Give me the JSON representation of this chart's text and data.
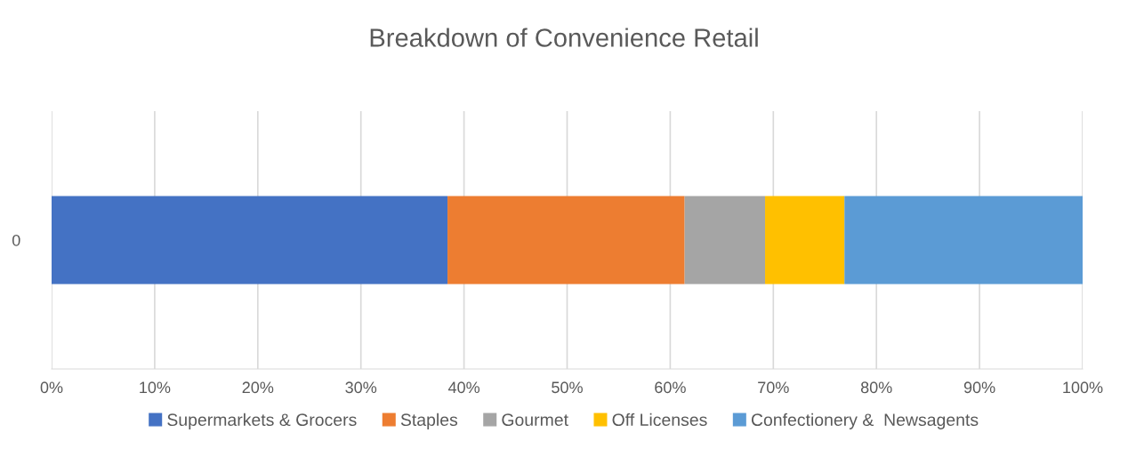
{
  "chart_data": {
    "type": "bar",
    "title": "Breakdown of Convenience Retail",
    "orientation": "horizontal",
    "stacked": true,
    "categories": [
      "0"
    ],
    "series": [
      {
        "name": "Supermarkets & Grocers",
        "color": "#4472c4",
        "values": [
          38.4
        ]
      },
      {
        "name": "Staples",
        "color": "#ed7d31",
        "values": [
          23.0
        ]
      },
      {
        "name": "Gourmet",
        "color": "#a5a5a5",
        "values": [
          7.8
        ]
      },
      {
        "name": "Off Licenses",
        "color": "#ffc000",
        "values": [
          7.7
        ]
      },
      {
        "name": "Confectionery &  Newsagents",
        "color": "#5b9bd5",
        "values": [
          23.1
        ]
      }
    ],
    "xlim": [
      0,
      100
    ],
    "xticks": [
      {
        "value": 0,
        "label": "0%"
      },
      {
        "value": 10,
        "label": "10%"
      },
      {
        "value": 20,
        "label": "20%"
      },
      {
        "value": 30,
        "label": "30%"
      },
      {
        "value": 40,
        "label": "40%"
      },
      {
        "value": 50,
        "label": "50%"
      },
      {
        "value": 60,
        "label": "60%"
      },
      {
        "value": 70,
        "label": "70%"
      },
      {
        "value": 80,
        "label": "80%"
      },
      {
        "value": 90,
        "label": "90%"
      },
      {
        "value": 100,
        "label": "100%"
      }
    ],
    "grid": "x",
    "legend": "bottom"
  }
}
